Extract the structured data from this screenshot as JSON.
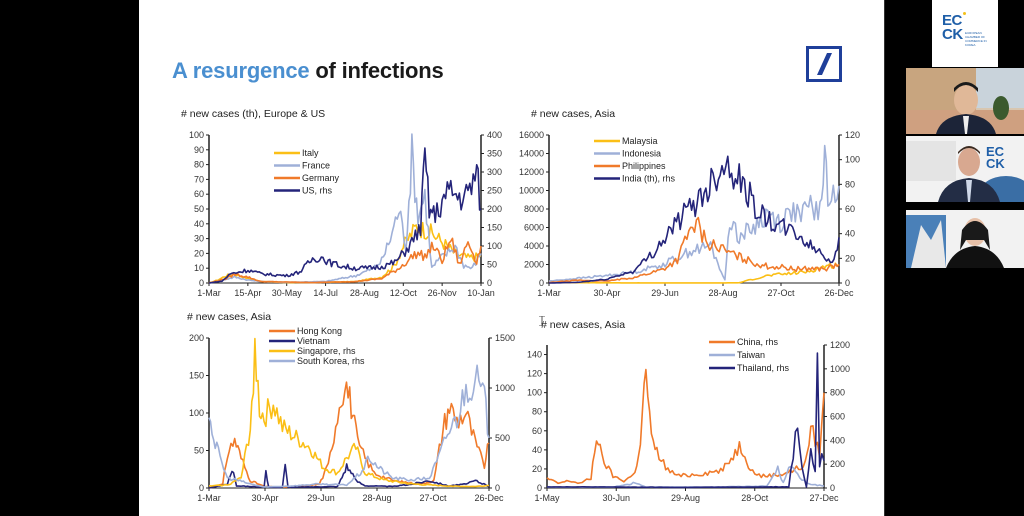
{
  "slide": {
    "title_highlight": "A resurgence",
    "title_rest": " of infections",
    "logo": "deutsche-bank-logo"
  },
  "participants": {
    "tiles": [
      {
        "name": "ecck-logo-tile",
        "logo_text_line1": "EC",
        "logo_text_line2": "CK",
        "subtitle": "EUROPEAN CHAMBER OF COMMERCE IN KOREA"
      },
      {
        "name": "participant-video-1"
      },
      {
        "name": "participant-video-2"
      },
      {
        "name": "participant-video-3"
      }
    ]
  },
  "colors": {
    "orange": "#f07a2a",
    "yellow": "#fbbf16",
    "lightblue": "#9fb0d8",
    "navy": "#24247a",
    "title_blue": "#4a8fd0"
  },
  "chart_data": [
    {
      "type": "line",
      "title": "# new cases (th), Europe & US",
      "x_ticks": [
        "1-Mar",
        "15-Apr",
        "30-May",
        "14-Jul",
        "28-Aug",
        "12-Oct",
        "26-Nov",
        "10-Jan"
      ],
      "ylim": [
        0,
        100
      ],
      "y_ticks": [
        0,
        10,
        20,
        30,
        40,
        50,
        60,
        70,
        80,
        90,
        100
      ],
      "y2lim": [
        0,
        400
      ],
      "y2_ticks": [
        0,
        50,
        100,
        150,
        200,
        250,
        300,
        350,
        400
      ],
      "legend_position": "top-left",
      "series": [
        {
          "name": "Italy",
          "color": "#fbbf16",
          "axis": "left",
          "x": [
            0,
            10,
            20,
            30,
            45,
            60,
            90,
            135,
            170,
            200,
            215,
            225,
            240,
            255,
            270,
            285,
            300,
            315
          ],
          "values": [
            0,
            2,
            5,
            6,
            3,
            1,
            0.3,
            0.5,
            1,
            4,
            12,
            25,
            38,
            35,
            28,
            20,
            17,
            18
          ]
        },
        {
          "name": "France",
          "color": "#9fb0d8",
          "axis": "left",
          "x": [
            0,
            15,
            30,
            45,
            60,
            90,
            135,
            170,
            190,
            200,
            210,
            220,
            228,
            235,
            242,
            250,
            258,
            265,
            275,
            285,
            295,
            305,
            315
          ],
          "values": [
            0,
            2,
            4,
            2,
            1,
            0.5,
            1,
            5,
            10,
            15,
            30,
            50,
            25,
            87,
            45,
            60,
            10,
            15,
            20,
            25,
            12,
            10,
            20
          ]
        },
        {
          "name": "Germany",
          "color": "#f07a2a",
          "axis": "left",
          "x": [
            0,
            20,
            30,
            45,
            60,
            120,
            170,
            200,
            220,
            230,
            240,
            250,
            260,
            270,
            280,
            290,
            300,
            310,
            315
          ],
          "values": [
            0,
            3,
            6,
            4,
            1,
            0.3,
            1,
            3,
            10,
            15,
            20,
            18,
            25,
            15,
            30,
            12,
            28,
            15,
            25
          ]
        },
        {
          "name": "US, rhs",
          "color": "#24247a",
          "axis": "right",
          "x": [
            0,
            15,
            25,
            35,
            45,
            60,
            75,
            90,
            105,
            120,
            130,
            140,
            155,
            170,
            185,
            200,
            215,
            225,
            235,
            245,
            250,
            255,
            262,
            270,
            280,
            290,
            300,
            310,
            315
          ],
          "values": [
            0,
            5,
            25,
            30,
            35,
            25,
            22,
            20,
            30,
            65,
            70,
            55,
            45,
            40,
            40,
            45,
            55,
            80,
            110,
            150,
            340,
            200,
            180,
            220,
            250,
            230,
            240,
            300,
            200
          ]
        }
      ]
    },
    {
      "type": "line",
      "title": "# new cases, Asia",
      "x_ticks": [
        "1-Mar",
        "30-Apr",
        "29-Jun",
        "28-Aug",
        "27-Oct",
        "26-Dec"
      ],
      "ylim": [
        0,
        16000
      ],
      "y_ticks": [
        0,
        2000,
        4000,
        6000,
        8000,
        10000,
        12000,
        14000,
        16000
      ],
      "y2lim": [
        0,
        120
      ],
      "y2_ticks": [
        0,
        20,
        40,
        60,
        80,
        100,
        120
      ],
      "legend_position": "top-left",
      "series": [
        {
          "name": "Malaysia",
          "color": "#fbbf16",
          "axis": "left",
          "x": [
            0,
            60,
            120,
            180,
            200,
            210,
            230,
            250,
            270,
            290,
            305
          ],
          "values": [
            50,
            20,
            10,
            10,
            30,
            300,
            800,
            1000,
            1200,
            1800,
            2000
          ]
        },
        {
          "name": "Indonesia",
          "color": "#9fb0d8",
          "axis": "left",
          "x": [
            0,
            30,
            60,
            90,
            120,
            150,
            170,
            185,
            190,
            200,
            215,
            230,
            245,
            255,
            265,
            275,
            285,
            290,
            295,
            305
          ],
          "values": [
            200,
            500,
            800,
            1200,
            2000,
            3500,
            4000,
            300,
            7000,
            5000,
            6000,
            7500,
            6500,
            8000,
            7000,
            8500,
            7500,
            13800,
            8000,
            10500
          ]
        },
        {
          "name": "Philippines",
          "color": "#f07a2a",
          "axis": "left",
          "x": [
            0,
            30,
            60,
            90,
            120,
            135,
            145,
            155,
            165,
            175,
            185,
            200,
            215,
            230,
            245,
            260,
            275,
            290,
            305
          ],
          "values": [
            50,
            300,
            200,
            600,
            1500,
            2500,
            5000,
            6500,
            4500,
            4000,
            3500,
            2800,
            2200,
            1800,
            1700,
            1500,
            1600,
            1500,
            2000
          ]
        },
        {
          "name": "India (th), rhs",
          "color": "#24247a",
          "axis": "right",
          "x": [
            0,
            30,
            60,
            90,
            110,
            130,
            150,
            165,
            180,
            190,
            200,
            215,
            230,
            245,
            260,
            275,
            290,
            298,
            305
          ],
          "values": [
            0,
            0.5,
            3,
            10,
            25,
            45,
            62,
            75,
            95,
            97,
            85,
            65,
            50,
            45,
            40,
            30,
            22,
            17,
            37
          ]
        }
      ]
    },
    {
      "type": "line",
      "title": "# new cases, Asia",
      "x_ticks": [
        "1-Mar",
        "30-Apr",
        "29-Jun",
        "28-Aug",
        "27-Oct",
        "26-Dec"
      ],
      "ylim": [
        0,
        200
      ],
      "y_ticks": [
        0,
        50,
        100,
        150,
        200
      ],
      "y2lim": [
        0,
        1500
      ],
      "y2_ticks": [
        0,
        500,
        1000,
        1500
      ],
      "legend_position": "top-center",
      "series": [
        {
          "name": "Hong Kong",
          "color": "#f07a2a",
          "axis": "left",
          "x": [
            0,
            15,
            20,
            28,
            35,
            45,
            60,
            90,
            120,
            130,
            140,
            148,
            155,
            162,
            170,
            180,
            200,
            230,
            245,
            255,
            262,
            270,
            280,
            290,
            300,
            305
          ],
          "values": [
            0,
            5,
            45,
            65,
            40,
            10,
            2,
            1,
            5,
            30,
            100,
            145,
            110,
            60,
            40,
            20,
            10,
            5,
            10,
            80,
            110,
            90,
            100,
            60,
            30,
            60
          ]
        },
        {
          "name": "Vietnam",
          "color": "#24247a",
          "axis": "left",
          "x": [
            0,
            20,
            25,
            30,
            60,
            62,
            65,
            80,
            83,
            86,
            140,
            145,
            150,
            155,
            160,
            170,
            200,
            220,
            240,
            260,
            280,
            290,
            305
          ],
          "values": [
            0,
            5,
            25,
            3,
            1,
            20,
            1,
            1,
            30,
            1,
            2,
            15,
            30,
            20,
            10,
            3,
            2,
            5,
            10,
            3,
            5,
            10,
            2
          ]
        },
        {
          "name": "Singapore, rhs",
          "color": "#fbbf16",
          "axis": "right",
          "x": [
            0,
            20,
            35,
            45,
            50,
            55,
            60,
            70,
            80,
            95,
            110,
            125,
            140,
            150,
            160,
            170,
            190,
            220,
            260,
            290,
            305
          ],
          "values": [
            20,
            30,
            100,
            600,
            1400,
            800,
            700,
            850,
            600,
            500,
            400,
            200,
            150,
            300,
            400,
            150,
            80,
            40,
            20,
            15,
            25
          ]
        },
        {
          "name": "South Korea, rhs",
          "color": "#9fb0d8",
          "axis": "right",
          "x": [
            0,
            5,
            12,
            20,
            30,
            45,
            60,
            90,
            120,
            150,
            165,
            175,
            185,
            200,
            220,
            240,
            250,
            260,
            270,
            280,
            290,
            300,
            305
          ],
          "values": [
            800,
            500,
            300,
            100,
            80,
            40,
            10,
            20,
            40,
            30,
            150,
            300,
            200,
            100,
            80,
            100,
            300,
            550,
            700,
            1000,
            1100,
            900,
            500
          ]
        }
      ]
    },
    {
      "type": "line",
      "title": "# new cases, Asia",
      "x_ticks": [
        "1-May",
        "30-Jun",
        "29-Aug",
        "28-Oct",
        "27-Dec"
      ],
      "ylim": [
        0,
        150
      ],
      "y_ticks": [
        0,
        20,
        40,
        60,
        80,
        100,
        120,
        140
      ],
      "y2lim": [
        0,
        1200
      ],
      "y2_ticks": [
        0,
        200,
        400,
        600,
        800,
        1000,
        1200
      ],
      "legend_position": "top-right",
      "series": [
        {
          "name": "China, rhs",
          "color": "#f07a2a",
          "axis": "right",
          "x": [
            0,
            10,
            20,
            30,
            40,
            45,
            50,
            60,
            70,
            80,
            85,
            90,
            95,
            100,
            110,
            120,
            140,
            160,
            175,
            180,
            185,
            195,
            210,
            225,
            235,
            240,
            248,
            252
          ],
          "values": [
            80,
            40,
            60,
            40,
            80,
            450,
            250,
            100,
            60,
            120,
            400,
            1000,
            400,
            300,
            150,
            100,
            120,
            150,
            350,
            300,
            150,
            100,
            110,
            150,
            200,
            500,
            300,
            800
          ]
        },
        {
          "name": "Taiwan",
          "color": "#9fb0d8",
          "axis": "left",
          "x": [
            0,
            30,
            60,
            75,
            80,
            90,
            150,
            200,
            210,
            215,
            220,
            230,
            240,
            252
          ],
          "values": [
            1,
            1,
            1,
            4,
            6,
            1,
            1,
            2,
            20,
            5,
            25,
            10,
            4,
            2
          ]
        },
        {
          "name": "Thailand, rhs",
          "color": "#24247a",
          "axis": "right",
          "x": [
            0,
            60,
            120,
            180,
            220,
            228,
            232,
            236,
            240,
            244,
            246,
            248,
            250,
            252
          ],
          "values": [
            10,
            8,
            5,
            8,
            10,
            560,
            200,
            10,
            300,
            150,
            1050,
            200,
            250,
            230
          ]
        }
      ]
    }
  ]
}
